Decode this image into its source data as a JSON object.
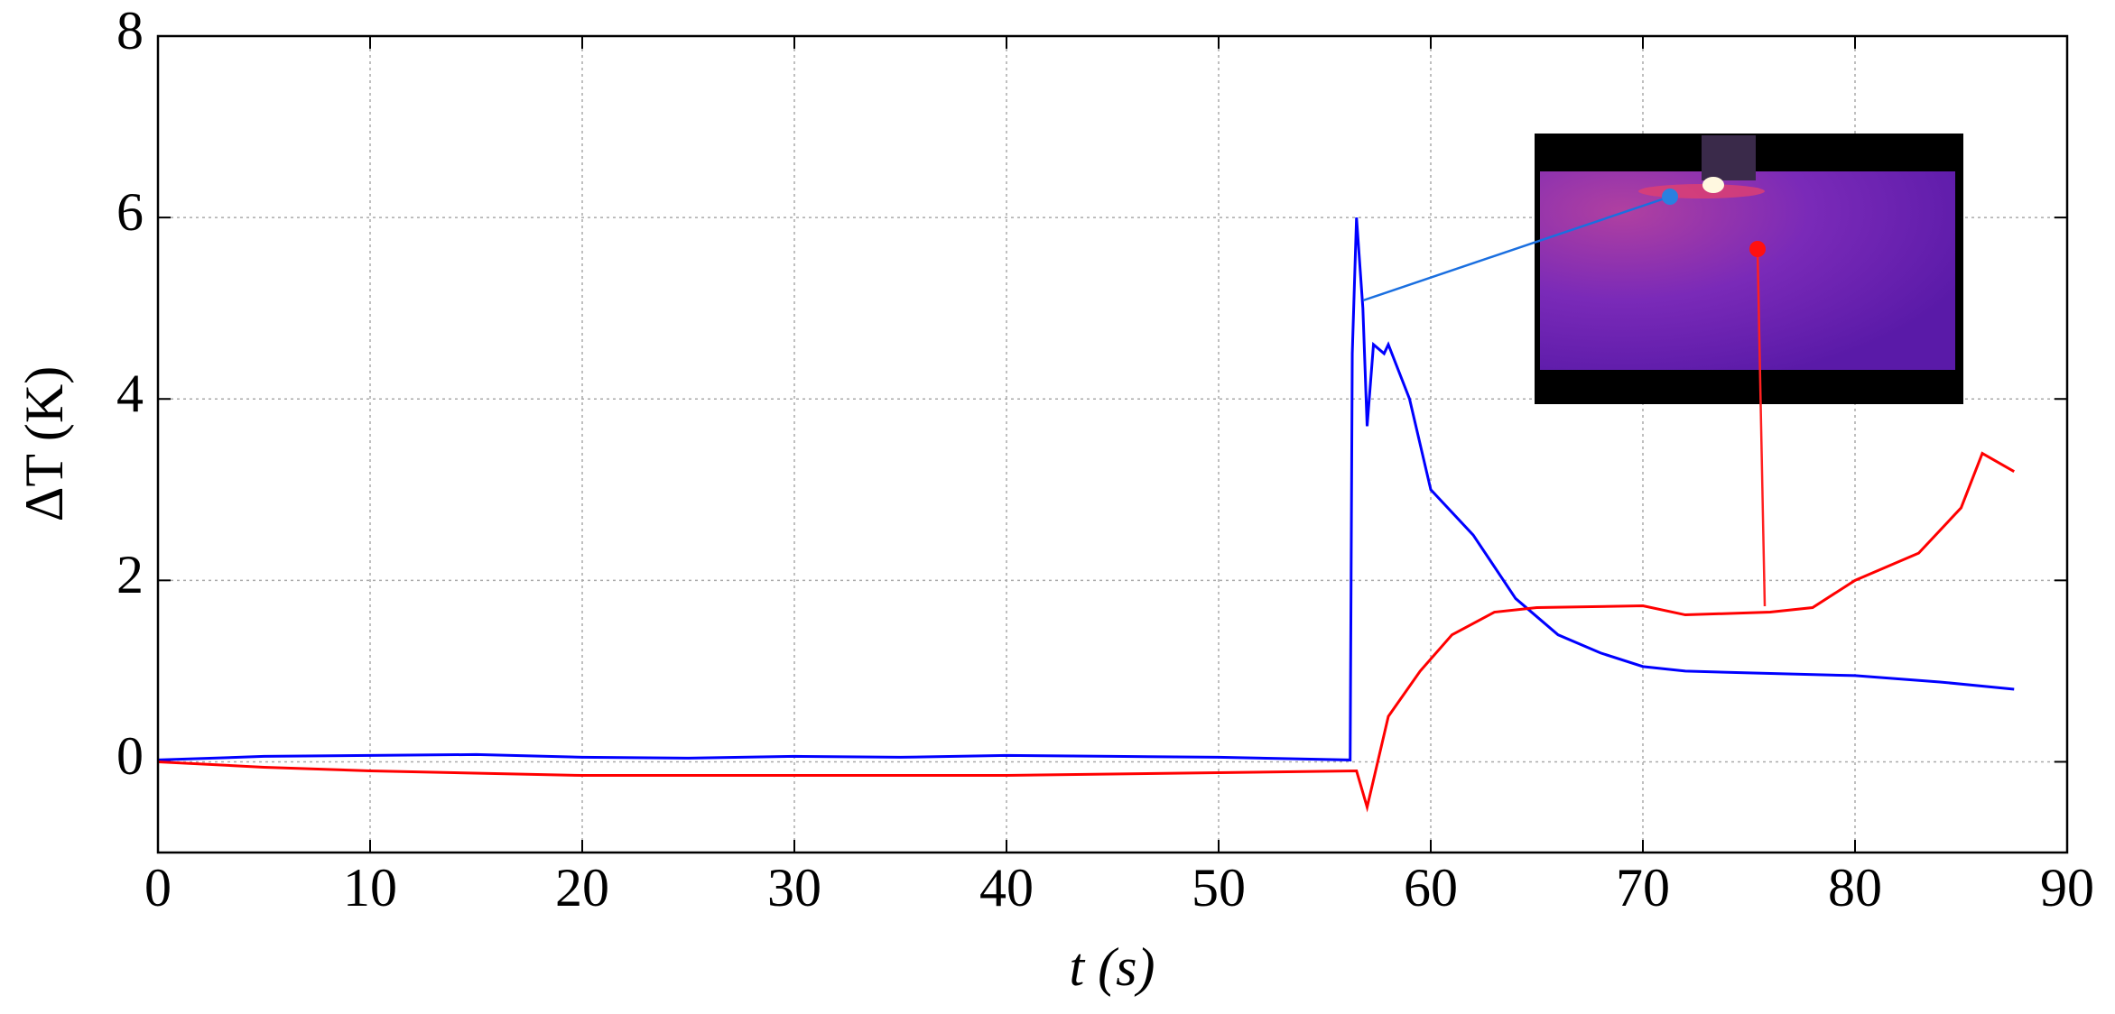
{
  "chart_data": {
    "type": "line",
    "x_label": "t (s)",
    "y_label": "ΔT (K)",
    "xlim": [
      0,
      90
    ],
    "xticks": [
      0,
      10,
      20,
      30,
      40,
      50,
      60,
      70,
      80,
      90
    ],
    "ylim": [
      -1,
      8
    ],
    "yticks": [
      0,
      2,
      4,
      6,
      8
    ],
    "grid": true,
    "series": [
      {
        "color": "#0000ff",
        "x": [
          0,
          5,
          10,
          15,
          20,
          25,
          30,
          35,
          40,
          45,
          50,
          56.2,
          56.3,
          56.5,
          56.8,
          57,
          57.3,
          57.8,
          58,
          59,
          60,
          62,
          64,
          66,
          68,
          70,
          72,
          75,
          80,
          84,
          87.5
        ],
        "values": [
          0.02,
          0.06,
          0.07,
          0.08,
          0.05,
          0.04,
          0.06,
          0.05,
          0.07,
          0.06,
          0.05,
          0.02,
          4.5,
          6.0,
          5.0,
          3.7,
          4.6,
          4.5,
          4.6,
          4.0,
          3.0,
          2.5,
          1.8,
          1.4,
          1.2,
          1.05,
          1.0,
          0.98,
          0.95,
          0.88,
          0.8
        ]
      },
      {
        "color": "#ff0000",
        "x": [
          0,
          5,
          10,
          20,
          30,
          40,
          50,
          56.5,
          57,
          57.5,
          58,
          59.5,
          61,
          63,
          65,
          70,
          72,
          76,
          78,
          80,
          83,
          85,
          86,
          87.5
        ],
        "values": [
          0,
          -0.06,
          -0.1,
          -0.15,
          -0.15,
          -0.15,
          -0.12,
          -0.1,
          -0.5,
          0,
          0.5,
          1.0,
          1.4,
          1.65,
          1.7,
          1.72,
          1.62,
          1.65,
          1.7,
          2.0,
          2.3,
          2.8,
          3.4,
          3.2
        ]
      }
    ]
  }
}
